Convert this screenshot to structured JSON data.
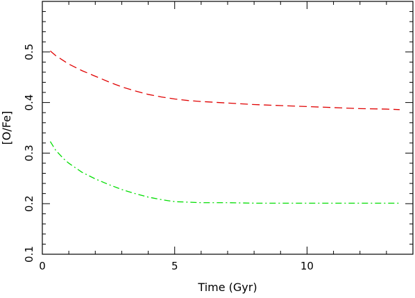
{
  "chart_data": {
    "type": "line",
    "title": "",
    "xlabel": "Time (Gyr)",
    "ylabel": "[O/Fe]",
    "xlim": [
      0,
      14
    ],
    "ylim": [
      0.1,
      0.6
    ],
    "xticks": [
      0,
      5,
      10
    ],
    "xtick_labels": [
      "0",
      "5",
      "10"
    ],
    "yticks": [
      0.1,
      0.2,
      0.3,
      0.4,
      0.5
    ],
    "ytick_labels": [
      "0.1",
      "0.2",
      "0.3",
      "0.4",
      "0.5"
    ],
    "grid": false,
    "legend": "none",
    "series": [
      {
        "color": "#e00000",
        "dash": "dashed",
        "x": [
          0.3,
          0.5,
          1.0,
          1.5,
          2.0,
          2.5,
          3.0,
          3.5,
          4.0,
          4.5,
          5.0,
          5.5,
          6.0,
          7.0,
          8.0,
          9.0,
          10.0,
          11.0,
          12.0,
          13.0,
          13.5
        ],
        "y": [
          0.502,
          0.493,
          0.476,
          0.463,
          0.452,
          0.441,
          0.431,
          0.423,
          0.416,
          0.411,
          0.407,
          0.404,
          0.402,
          0.399,
          0.396,
          0.394,
          0.392,
          0.39,
          0.388,
          0.387,
          0.386
        ]
      },
      {
        "color": "#00dd00",
        "dash": "dashdot",
        "x": [
          0.3,
          0.5,
          0.8,
          1.0,
          1.5,
          2.0,
          2.5,
          3.0,
          3.5,
          4.0,
          4.5,
          5.0,
          5.5,
          6.0,
          7.0,
          8.0,
          9.0,
          10.0,
          11.0,
          12.0,
          13.0,
          13.5
        ],
        "y": [
          0.323,
          0.306,
          0.289,
          0.28,
          0.262,
          0.249,
          0.238,
          0.228,
          0.22,
          0.213,
          0.208,
          0.204,
          0.203,
          0.202,
          0.202,
          0.201,
          0.201,
          0.201,
          0.201,
          0.201,
          0.201,
          0.201
        ]
      }
    ]
  }
}
